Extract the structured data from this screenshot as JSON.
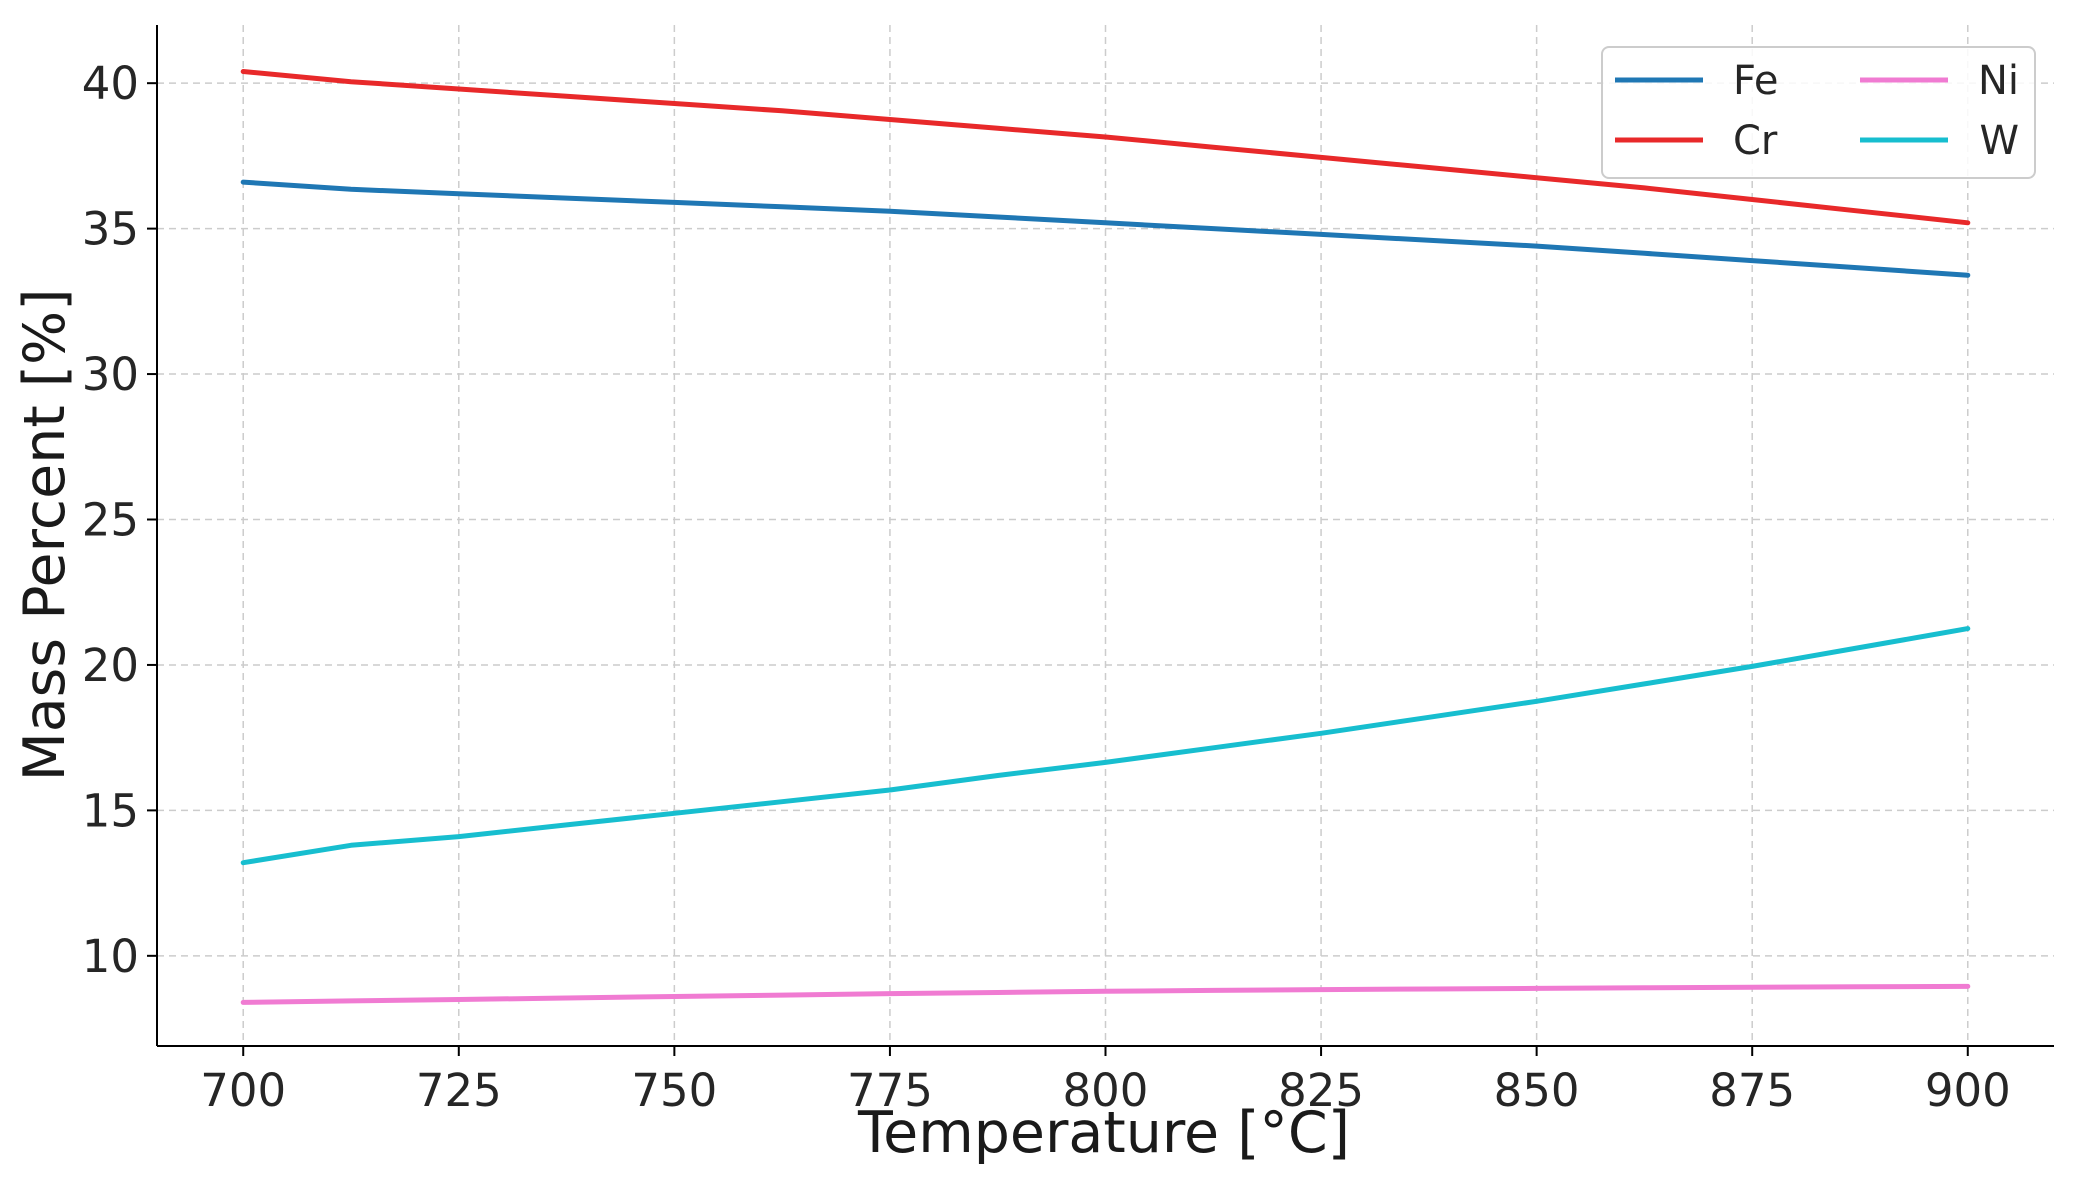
{
  "chart_data": {
    "type": "line",
    "xlabel": "Temperature [°C]",
    "ylabel": "Mass Percent [%]",
    "xlim": [
      690,
      910
    ],
    "ylim": [
      6.9,
      42.0
    ],
    "xticks": [
      700,
      725,
      750,
      775,
      800,
      825,
      850,
      875,
      900
    ],
    "yticks": [
      10,
      15,
      20,
      25,
      30,
      35,
      40
    ],
    "grid": true,
    "legend_position": "top-right",
    "legend_columns": 2,
    "x": [
      700,
      712.5,
      725,
      737.5,
      750,
      762.5,
      775,
      787.5,
      800,
      812.5,
      825,
      837.5,
      850,
      862.5,
      875,
      887.5,
      900
    ],
    "series": [
      {
        "name": "Fe",
        "color": "#1f77b4",
        "values": [
          36.6,
          36.35,
          36.2,
          36.05,
          35.9,
          35.75,
          35.6,
          35.4,
          35.2,
          35.0,
          34.8,
          34.6,
          34.4,
          34.15,
          33.9,
          33.65,
          33.4
        ]
      },
      {
        "name": "Cr",
        "color": "#e8292a",
        "values": [
          40.4,
          40.05,
          39.8,
          39.55,
          39.3,
          39.05,
          38.75,
          38.45,
          38.15,
          37.8,
          37.45,
          37.1,
          36.75,
          36.4,
          36.0,
          35.6,
          35.2
        ]
      },
      {
        "name": "Ni",
        "color": "#f07bd2",
        "values": [
          8.4,
          8.45,
          8.5,
          8.55,
          8.6,
          8.65,
          8.7,
          8.74,
          8.78,
          8.81,
          8.84,
          8.86,
          8.88,
          8.9,
          8.92,
          8.94,
          8.95
        ]
      },
      {
        "name": "W",
        "color": "#17becf",
        "values": [
          13.2,
          13.8,
          14.1,
          14.5,
          14.9,
          15.3,
          15.7,
          16.2,
          16.65,
          17.15,
          17.65,
          18.2,
          18.75,
          19.35,
          19.95,
          20.6,
          21.25
        ]
      }
    ]
  }
}
